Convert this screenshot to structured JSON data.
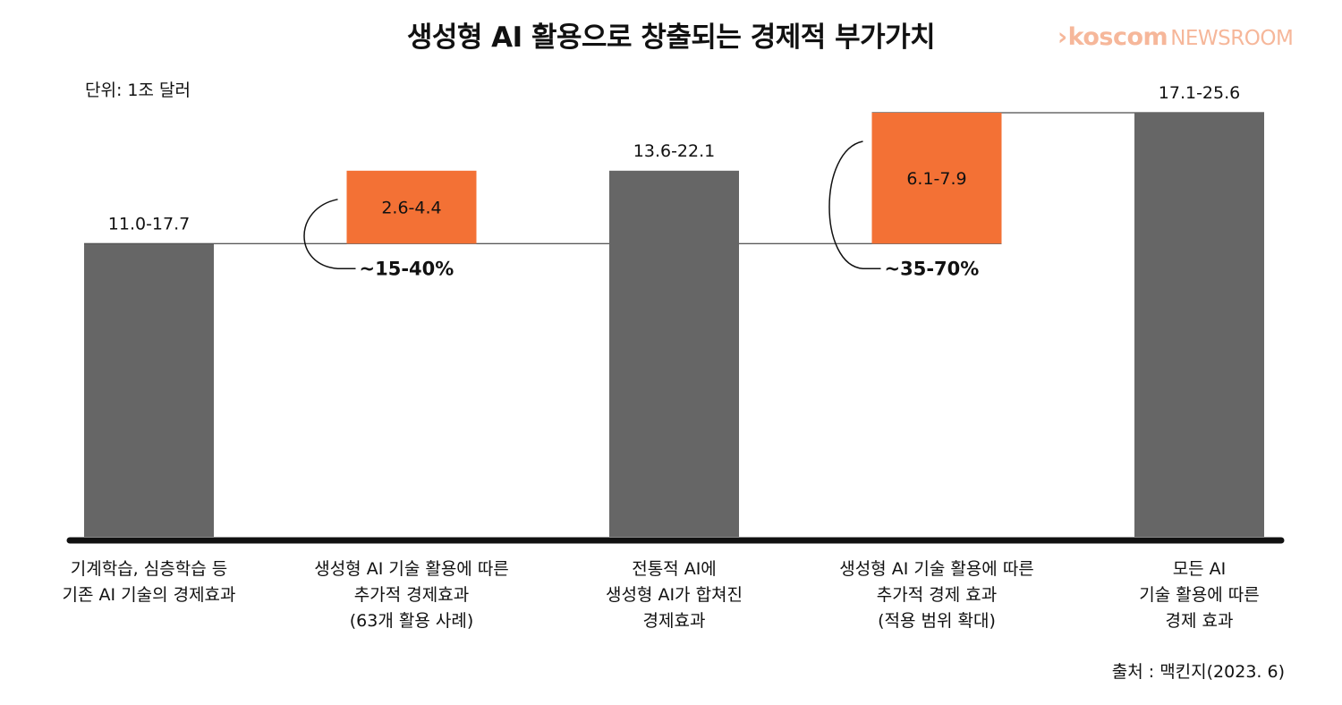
{
  "header": {
    "title": "생성형 AI 활용으로 창출되는 경제적 부가가치",
    "unit": "단위: 1조 달러",
    "logo_brand": "koscom",
    "logo_suffix": "NEWSROOM"
  },
  "footer": {
    "source": "출처 : 맥킨지(2023. 6)"
  },
  "colors": {
    "gray_bar": "#666666",
    "orange_bar": "#f37135",
    "logo": "#f6b79a"
  },
  "chart_data": {
    "type": "bar",
    "title": "생성형 AI 활용으로 창출되는 경제적 부가가치",
    "ylabel": "단위: 1조 달러",
    "categories": [
      [
        "기계학습, 심층학습 등",
        "기존 AI 기술의 경제효과"
      ],
      [
        "생성형 AI 기술 활용에 따른",
        "추가적 경제효과",
        "(63개 활용 사례)"
      ],
      [
        "전통적 AI에",
        "생성형 AI가 합쳐진",
        "경제효과"
      ],
      [
        "생성형 AI 기술 활용에 따른",
        "추가적 경제 효과",
        "(적용 범위 확대)"
      ],
      [
        "모든 AI",
        "기술 활용에 따른",
        "경제 효과"
      ]
    ],
    "bars": [
      {
        "kind": "total",
        "label": "11.0-17.7",
        "bottom": 0,
        "top": 17.7
      },
      {
        "kind": "increment",
        "label": "2.6-4.4",
        "bottom": 17.7,
        "top": 22.1
      },
      {
        "kind": "total",
        "label": "13.6-22.1",
        "bottom": 0,
        "top": 22.1
      },
      {
        "kind": "increment",
        "label": "6.1-7.9",
        "bottom": 17.7,
        "top": 25.6
      },
      {
        "kind": "total",
        "label": "17.1-25.6",
        "bottom": 0,
        "top": 25.6
      }
    ],
    "annotations": [
      {
        "bar": 1,
        "text": "~15-40%"
      },
      {
        "bar": 3,
        "text": "~35-70%"
      }
    ],
    "ylim": [
      0,
      25.6
    ],
    "grid": false,
    "legend": "none"
  }
}
